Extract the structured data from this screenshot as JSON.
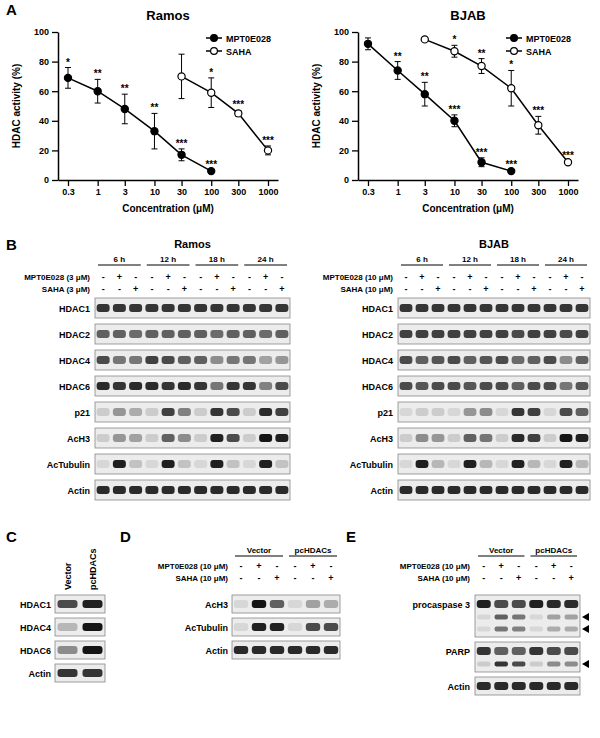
{
  "chart_data": [
    {
      "type": "line",
      "title": "Ramos",
      "x_label": "Concentration (μM)",
      "y_label": "HDAC activity (%)",
      "log": "x",
      "grid": false,
      "legend": "upper right",
      "xlim": [
        0.2,
        1500
      ],
      "ylim": [
        0,
        100
      ],
      "xticks": [
        0.3,
        1,
        3,
        10,
        30,
        100,
        300,
        1000
      ],
      "yticks": [
        0,
        20,
        40,
        60,
        80,
        100
      ],
      "series": [
        {
          "name": "MPT0E028",
          "color": "#000000",
          "marker": "filled-circle",
          "line_style": "solid",
          "x": [
            0.3,
            1,
            3,
            10,
            30,
            100
          ],
          "values": [
            69,
            60,
            48,
            33,
            17,
            6
          ],
          "errors": [
            7,
            8,
            10,
            12,
            4,
            1
          ],
          "significance": [
            "*",
            "**",
            "**",
            "**",
            "***",
            "***"
          ]
        },
        {
          "name": "SAHA",
          "color": "#000000",
          "marker": "open-circle",
          "line_style": "solid",
          "x": [
            30,
            100,
            300,
            1000
          ],
          "values": [
            70,
            59,
            45,
            20
          ],
          "errors": [
            15,
            10,
            2,
            3
          ],
          "significance": [
            null,
            "*",
            "***",
            "***"
          ]
        }
      ]
    },
    {
      "type": "line",
      "title": "BJAB",
      "x_label": "Concentration (μM)",
      "y_label": "HDAC activity (%)",
      "log": "x",
      "grid": false,
      "legend": "upper right",
      "xlim": [
        0.2,
        1500
      ],
      "ylim": [
        0,
        100
      ],
      "xticks": [
        0.3,
        1,
        3,
        10,
        30,
        100,
        300,
        1000
      ],
      "yticks": [
        0,
        20,
        40,
        60,
        80,
        100
      ],
      "series": [
        {
          "name": "MPT0E028",
          "color": "#000000",
          "marker": "filled-circle",
          "line_style": "solid",
          "x": [
            0.3,
            1,
            3,
            10,
            30,
            100
          ],
          "values": [
            92,
            74,
            58,
            40,
            12,
            6
          ],
          "errors": [
            4,
            6,
            8,
            4,
            3,
            1
          ],
          "significance": [
            null,
            "**",
            "**",
            "***",
            "***",
            "***"
          ]
        },
        {
          "name": "SAHA",
          "color": "#000000",
          "marker": "open-circle",
          "line_style": "solid",
          "x": [
            3,
            10,
            30,
            100,
            300,
            1000
          ],
          "values": [
            95,
            87,
            77,
            62,
            37,
            12
          ],
          "errors": [
            1,
            4,
            5,
            12,
            6,
            1
          ],
          "significance": [
            null,
            "*",
            "**",
            "*",
            "***",
            "***"
          ]
        }
      ]
    }
  ],
  "panel_labels": [
    "A",
    "B",
    "C",
    "D",
    "E"
  ],
  "blots": {
    "intensity_scale": [
      0,
      1
    ],
    "B": [
      {
        "title": "Ramos",
        "groups": [
          "6 h",
          "12 h",
          "18 h",
          "24 h"
        ],
        "treatments": [
          {
            "name": "MPT0E028 (3 μM)",
            "lanes": [
              "-",
              "+",
              "-",
              "-",
              "+",
              "-",
              "-",
              "+",
              "-",
              "-",
              "+",
              "-"
            ]
          },
          {
            "name": "SAHA (3 μM)",
            "lanes": [
              "-",
              "-",
              "+",
              "-",
              "-",
              "+",
              "-",
              "-",
              "+",
              "-",
              "-",
              "+"
            ]
          }
        ],
        "rows": [
          {
            "name": "HDAC1",
            "intensity": [
              0.8,
              0.8,
              0.8,
              0.8,
              0.8,
              0.8,
              0.8,
              0.8,
              0.8,
              0.8,
              0.8,
              0.8
            ]
          },
          {
            "name": "HDAC2",
            "intensity": [
              0.6,
              0.6,
              0.55,
              0.6,
              0.6,
              0.6,
              0.6,
              0.55,
              0.6,
              0.6,
              0.55,
              0.6
            ]
          },
          {
            "name": "HDAC4",
            "intensity": [
              0.7,
              0.5,
              0.5,
              0.75,
              0.7,
              0.6,
              0.6,
              0.4,
              0.5,
              0.5,
              0.3,
              0.35
            ]
          },
          {
            "name": "HDAC6",
            "intensity": [
              0.85,
              0.8,
              0.85,
              0.85,
              0.8,
              0.85,
              0.8,
              0.5,
              0.8,
              0.8,
              0.45,
              0.7
            ]
          },
          {
            "name": "p21",
            "intensity": [
              0.1,
              0.35,
              0.25,
              0.1,
              0.75,
              0.45,
              0.1,
              0.8,
              0.7,
              0.1,
              0.85,
              0.75
            ]
          },
          {
            "name": "AcH3",
            "intensity": [
              0.1,
              0.35,
              0.3,
              0.1,
              0.6,
              0.4,
              0.1,
              0.9,
              0.7,
              0.1,
              0.95,
              0.9
            ]
          },
          {
            "name": "AcTubulin",
            "intensity": [
              0.05,
              0.9,
              0.15,
              0.05,
              0.9,
              0.15,
              0.05,
              0.9,
              0.15,
              0.05,
              0.9,
              0.15
            ]
          },
          {
            "name": "Actin",
            "intensity": [
              0.85,
              0.85,
              0.85,
              0.85,
              0.85,
              0.85,
              0.85,
              0.85,
              0.85,
              0.85,
              0.85,
              0.85
            ]
          }
        ]
      },
      {
        "title": "BJAB",
        "groups": [
          "6 h",
          "12 h",
          "18 h",
          "24 h"
        ],
        "treatments": [
          {
            "name": "MPT0E028 (10 μM)",
            "lanes": [
              "-",
              "+",
              "-",
              "-",
              "+",
              "-",
              "-",
              "+",
              "-",
              "-",
              "+",
              "-"
            ]
          },
          {
            "name": "SAHA (10 μM)",
            "lanes": [
              "-",
              "-",
              "+",
              "-",
              "-",
              "+",
              "-",
              "-",
              "+",
              "-",
              "-",
              "+"
            ]
          }
        ],
        "rows": [
          {
            "name": "HDAC1",
            "intensity": [
              0.8,
              0.8,
              0.8,
              0.8,
              0.8,
              0.8,
              0.8,
              0.8,
              0.8,
              0.8,
              0.8,
              0.8
            ]
          },
          {
            "name": "HDAC2",
            "intensity": [
              0.75,
              0.75,
              0.75,
              0.75,
              0.75,
              0.75,
              0.75,
              0.7,
              0.75,
              0.75,
              0.7,
              0.75
            ]
          },
          {
            "name": "HDAC4",
            "intensity": [
              0.7,
              0.6,
              0.65,
              0.7,
              0.6,
              0.65,
              0.7,
              0.55,
              0.6,
              0.7,
              0.4,
              0.6
            ]
          },
          {
            "name": "HDAC6",
            "intensity": [
              0.7,
              0.65,
              0.7,
              0.7,
              0.65,
              0.7,
              0.7,
              0.6,
              0.7,
              0.7,
              0.5,
              0.65
            ]
          },
          {
            "name": "p21",
            "intensity": [
              0.05,
              0.1,
              0.1,
              0.05,
              0.35,
              0.4,
              0.05,
              0.8,
              0.75,
              0.05,
              0.7,
              0.6
            ]
          },
          {
            "name": "AcH3",
            "intensity": [
              0.1,
              0.4,
              0.35,
              0.1,
              0.6,
              0.5,
              0.1,
              0.85,
              0.75,
              0.1,
              0.95,
              0.9
            ]
          },
          {
            "name": "AcTubulin",
            "intensity": [
              0.05,
              0.9,
              0.2,
              0.05,
              0.9,
              0.2,
              0.05,
              0.9,
              0.2,
              0.05,
              0.9,
              0.2
            ]
          },
          {
            "name": "Actin",
            "intensity": [
              0.85,
              0.85,
              0.85,
              0.85,
              0.85,
              0.85,
              0.85,
              0.85,
              0.85,
              0.85,
              0.85,
              0.85
            ]
          }
        ]
      }
    ],
    "C": {
      "lanes": [
        "Vector",
        "pcHDACs"
      ],
      "rows": [
        {
          "name": "HDAC1",
          "intensity": [
            0.7,
            0.9
          ]
        },
        {
          "name": "HDAC4",
          "intensity": [
            0.2,
            0.95
          ]
        },
        {
          "name": "HDAC6",
          "intensity": [
            0.4,
            0.95
          ]
        },
        {
          "name": "Actin",
          "intensity": [
            0.8,
            0.8
          ]
        }
      ]
    },
    "D": {
      "groups": [
        "Vector",
        "pcHDACs"
      ],
      "treatments": [
        {
          "name": "MPT0E028 (10 μM)",
          "lanes": [
            "-",
            "+",
            "-",
            "-",
            "+",
            "-"
          ]
        },
        {
          "name": "SAHA (10 μM)",
          "lanes": [
            "-",
            "-",
            "+",
            "-",
            "-",
            "+"
          ]
        }
      ],
      "rows": [
        {
          "name": "AcH3",
          "intensity": [
            0.05,
            0.95,
            0.6,
            0.05,
            0.3,
            0.25
          ]
        },
        {
          "name": "AcTubulin",
          "intensity": [
            0.05,
            0.9,
            0.9,
            0.05,
            0.7,
            0.7
          ]
        },
        {
          "name": "Actin",
          "intensity": [
            0.85,
            0.85,
            0.85,
            0.85,
            0.85,
            0.85
          ]
        }
      ]
    },
    "E": {
      "groups": [
        "Vector",
        "pcHDACs"
      ],
      "treatments": [
        {
          "name": "MPT0E028 (10 μM)",
          "lanes": [
            "-",
            "+",
            "-",
            "-",
            "+",
            "-"
          ]
        },
        {
          "name": "SAHA (10 μM)",
          "lanes": [
            "-",
            "-",
            "+",
            "-",
            "-",
            "+"
          ]
        }
      ],
      "rows": [
        {
          "name": "procaspase 3",
          "intensity": [
            0.9,
            0.7,
            0.7,
            0.9,
            0.85,
            0.85
          ],
          "cleaved": [
            [
              0.05,
              0.6,
              0.5,
              0.05,
              0.3,
              0.3
            ],
            [
              0.05,
              0.5,
              0.45,
              0.05,
              0.25,
              0.25
            ]
          ]
        },
        {
          "name": "PARP",
          "intensity": [
            0.8,
            0.6,
            0.6,
            0.8,
            0.7,
            0.7
          ],
          "cleaved": [
            [
              0.1,
              0.8,
              0.7,
              0.1,
              0.4,
              0.4
            ]
          ]
        },
        {
          "name": "Actin",
          "intensity": [
            0.85,
            0.85,
            0.85,
            0.85,
            0.85,
            0.85
          ]
        }
      ]
    }
  }
}
